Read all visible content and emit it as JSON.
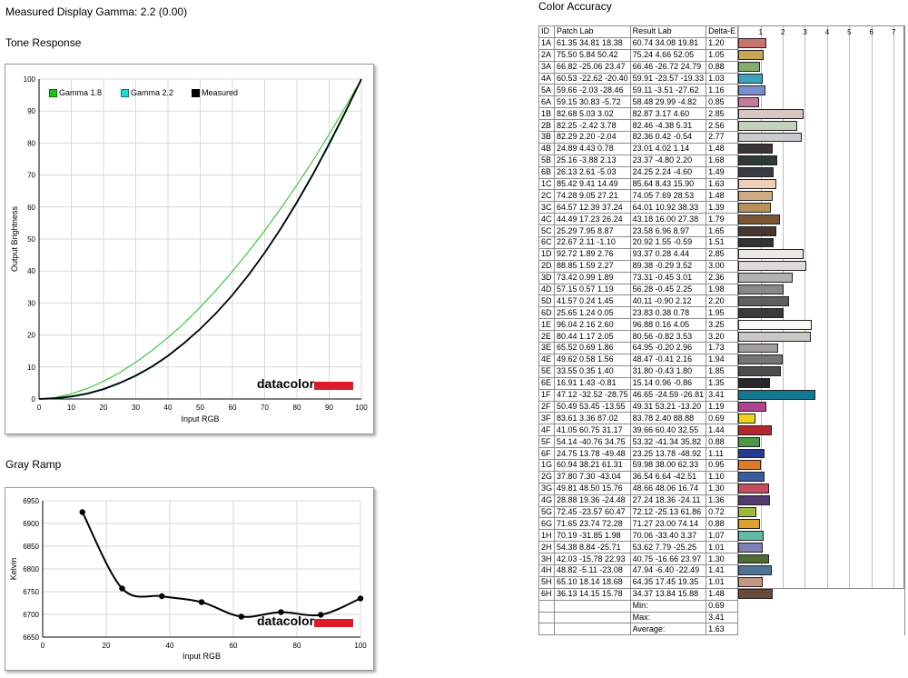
{
  "header": {
    "title": "Measured Display Gamma: 2.2 (0.00)"
  },
  "tone": {
    "title": "Tone Response",
    "legend": [
      "Gamma 1.8",
      "Gamma 2.2",
      "Measured"
    ],
    "legend_colors": [
      "#19c419",
      "#28d6d6",
      "#000000"
    ],
    "logo": "datacolor",
    "xlabel": "Input RGB",
    "ylabel": "Output Brightness",
    "xticks": [
      "0",
      "10",
      "20",
      "30",
      "40",
      "50",
      "60",
      "70",
      "80",
      "90",
      "100"
    ],
    "yticks": [
      "0",
      "10",
      "20",
      "30",
      "40",
      "50",
      "60",
      "70",
      "80",
      "90",
      "100"
    ]
  },
  "gray": {
    "title": "Gray Ramp",
    "logo": "datacolor",
    "xlabel": "Input RGB",
    "ylabel": "Kelvin",
    "xticks": [
      "0",
      "20",
      "40",
      "60",
      "80",
      "100"
    ],
    "yticks": [
      "6650",
      "6700",
      "6750",
      "6800",
      "6850",
      "6900",
      "6950"
    ]
  },
  "accuracy": {
    "title": "Color Accuracy",
    "headers": [
      "ID",
      "Patch Lab",
      "Result Lab",
      "Delta-E"
    ],
    "scale": [
      "1",
      "2",
      "3",
      "4",
      "5",
      "6",
      "7"
    ],
    "summary": [
      {
        "label": "Min:",
        "value": "0.69"
      },
      {
        "label": "Max:",
        "value": "3.41"
      },
      {
        "label": "Average:",
        "value": "1.63"
      }
    ],
    "rows": [
      {
        "id": "1A",
        "patch": "61.35 34.81 18.38",
        "result": "60.74 34.08 19.81",
        "de": "1.20",
        "de_v": 1.2,
        "color": "#c8736e"
      },
      {
        "id": "2A",
        "patch": "75.50 5.84 50.42",
        "result": "75.24 4.66 52.05",
        "de": "1.05",
        "de_v": 1.05,
        "color": "#c8a656"
      },
      {
        "id": "3A",
        "patch": "66.82 -25.06 23.47",
        "result": "66.46 -26.72 24.79",
        "de": "0.88",
        "de_v": 0.88,
        "color": "#86ac6a"
      },
      {
        "id": "4A",
        "patch": "60.53 -22.62 -20.40",
        "result": "59.91 -23.57 -19.33",
        "de": "1.03",
        "de_v": 1.03,
        "color": "#3da3b8"
      },
      {
        "id": "5A",
        "patch": "59.66 -2.03 -28.46",
        "result": "59.11 -3.51 -27.62",
        "de": "1.16",
        "de_v": 1.16,
        "color": "#7b8ed0"
      },
      {
        "id": "6A",
        "patch": "59.15 30.83 -5.72",
        "result": "58.48 29.99 -4.82",
        "de": "0.85",
        "de_v": 0.85,
        "color": "#c47b9f"
      },
      {
        "id": "1B",
        "patch": "82.68 5.03 3.02",
        "result": "82.87 3.17 4.60",
        "de": "2.85",
        "de_v": 2.85,
        "color": "#d7c6c2"
      },
      {
        "id": "2B",
        "patch": "82.25 -2.42 3.78",
        "result": "82.46 -4.38 5.31",
        "de": "2.56",
        "de_v": 2.56,
        "color": "#c2d0bc"
      },
      {
        "id": "3B",
        "patch": "82.29 2.20 -2.04",
        "result": "82.36 0.42 -0.54",
        "de": "2.77",
        "de_v": 2.77,
        "color": "#cbcbcb"
      },
      {
        "id": "4B",
        "patch": "24.89 4.43 0.78",
        "result": "23.01 4.02 1.14",
        "de": "1.48",
        "de_v": 1.48,
        "color": "#3a3434"
      },
      {
        "id": "5B",
        "patch": "25.16 -3.88 2.13",
        "result": "23.37 -4.80 2.20",
        "de": "1.68",
        "de_v": 1.68,
        "color": "#2f3a33"
      },
      {
        "id": "6B",
        "patch": "26.13 2.61 -5.03",
        "result": "24.25 2.24 -4.60",
        "de": "1.49",
        "de_v": 1.49,
        "color": "#383a44"
      },
      {
        "id": "1C",
        "patch": "85.42 9.41 14.49",
        "result": "85.64 8.43 15.90",
        "de": "1.63",
        "de_v": 1.63,
        "color": "#f0cfb9"
      },
      {
        "id": "2C",
        "patch": "74.28 9.05 27.21",
        "result": "74.05 7.69 28.53",
        "de": "1.48",
        "de_v": 1.48,
        "color": "#d0aa85"
      },
      {
        "id": "3C",
        "patch": "64.57 12.39 37.24",
        "result": "64.01 10.92 38.33",
        "de": "1.39",
        "de_v": 1.39,
        "color": "#b8905c"
      },
      {
        "id": "4C",
        "patch": "44.49 17.23 26.24",
        "result": "43.18 16.00 27.38",
        "de": "1.79",
        "de_v": 1.79,
        "color": "#7a5535"
      },
      {
        "id": "5C",
        "patch": "25.29 7.95 8.87",
        "result": "23.58 6.96 8.97",
        "de": "1.65",
        "de_v": 1.65,
        "color": "#473630"
      },
      {
        "id": "6C",
        "patch": "22.67 2.11 -1.10",
        "result": "20.92 1.55 -0.59",
        "de": "1.51",
        "de_v": 1.51,
        "color": "#333234"
      },
      {
        "id": "1D",
        "patch": "92.72 1.89 2.76",
        "result": "93.37 0.28 4.44",
        "de": "2.85",
        "de_v": 2.85,
        "color": "#ece9e3"
      },
      {
        "id": "2D",
        "patch": "88.85 1.59 2.27",
        "result": "89.38 -0.29 3.52",
        "de": "3.00",
        "de_v": 3.0,
        "color": "#dedbd6"
      },
      {
        "id": "3D",
        "patch": "73.42 0.99 1.89",
        "result": "73.31 -0.45 3.01",
        "de": "2.36",
        "de_v": 2.36,
        "color": "#b3b2ae"
      },
      {
        "id": "4D",
        "patch": "57.15 0.57 1.19",
        "result": "56.28 -0.45 2.25",
        "de": "1.98",
        "de_v": 1.98,
        "color": "#8a8987"
      },
      {
        "id": "5D",
        "patch": "41.57 0.24 1.45",
        "result": "40.11 -0.90 2.12",
        "de": "2.20",
        "de_v": 2.2,
        "color": "#5f5f5d"
      },
      {
        "id": "6D",
        "patch": "25.65 1.24 0.05",
        "result": "23.83 0.38 0.78",
        "de": "1.95",
        "de_v": 1.95,
        "color": "#3a3939"
      },
      {
        "id": "1E",
        "patch": "96.04 2.16 2.60",
        "result": "96.88 0.16 4.05",
        "de": "3.25",
        "de_v": 3.25,
        "color": "#f9f7f1"
      },
      {
        "id": "2E",
        "patch": "80.44 1.17 2.05",
        "result": "80.56 -0.82 3.53",
        "de": "3.20",
        "de_v": 3.2,
        "color": "#c9c8c3"
      },
      {
        "id": "3E",
        "patch": "65.52 0.69 1.86",
        "result": "64.95 -0.20 2.96",
        "de": "1.73",
        "de_v": 1.73,
        "color": "#a09f9c"
      },
      {
        "id": "4E",
        "patch": "49.62 0.58 1.56",
        "result": "48.47 -0.41 2.16",
        "de": "1.94",
        "de_v": 1.94,
        "color": "#767573"
      },
      {
        "id": "5E",
        "patch": "33.55 0.35 1.40",
        "result": "31.80 -0.43 1.80",
        "de": "1.85",
        "de_v": 1.85,
        "color": "#4c4c4b"
      },
      {
        "id": "6E",
        "patch": "16.91 1.43 -0.81",
        "result": "15.14 0.96 -0.86",
        "de": "1.35",
        "de_v": 1.35,
        "color": "#272628"
      },
      {
        "id": "1F",
        "patch": "47.12 -32.52 -28.75",
        "result": "46.65 -24.59 -26.81",
        "de": "3.41",
        "de_v": 3.41,
        "color": "#137892"
      },
      {
        "id": "2F",
        "patch": "50.49 53.45 -13.55",
        "result": "49.31 53.21 -13.20",
        "de": "1.19",
        "de_v": 1.19,
        "color": "#b1428f"
      },
      {
        "id": "3F",
        "patch": "83.61 3.36 87.02",
        "result": "83.78 2.40 88.88",
        "de": "0.69",
        "de_v": 0.69,
        "color": "#f0d21c"
      },
      {
        "id": "4F",
        "patch": "41.05 60.75 31.17",
        "result": "39.66 60.40 32.55",
        "de": "1.44",
        "de_v": 1.44,
        "color": "#b5262e"
      },
      {
        "id": "5F",
        "patch": "54.14 -40.76 34.75",
        "result": "53.32 -41.34 35.82",
        "de": "0.88",
        "de_v": 0.88,
        "color": "#4a9a45"
      },
      {
        "id": "6F",
        "patch": "24.75 13.78 -49.48",
        "result": "23.25 13.78 -48.92",
        "de": "1.11",
        "de_v": 1.11,
        "color": "#283b8e"
      },
      {
        "id": "1G",
        "patch": "60.94 38.21 61.31",
        "result": "59.98 38.00 62.33",
        "de": "0.95",
        "de_v": 0.95,
        "color": "#de7b29"
      },
      {
        "id": "2G",
        "patch": "37.80 7.30 -43.04",
        "result": "36.54 6.64 -42.51",
        "de": "1.10",
        "de_v": 1.1,
        "color": "#3b5aa0"
      },
      {
        "id": "3G",
        "patch": "49.81 48.50 15.76",
        "result": "48.66 48.06 16.74",
        "de": "1.30",
        "de_v": 1.3,
        "color": "#c24e5e"
      },
      {
        "id": "4G",
        "patch": "28.88 19.36 -24.48",
        "result": "27.24 18.36 -24.11",
        "de": "1.36",
        "de_v": 1.36,
        "color": "#523a6e"
      },
      {
        "id": "5G",
        "patch": "72.45 -23.57 60.47",
        "result": "72.12 -25.13 61.86",
        "de": "0.72",
        "de_v": 0.72,
        "color": "#9cbb3e"
      },
      {
        "id": "6G",
        "patch": "71.65 23.74 72.28",
        "result": "71.27 23.00 74.14",
        "de": "0.88",
        "de_v": 0.88,
        "color": "#e3a02c"
      },
      {
        "id": "1H",
        "patch": "70.19 -31.85 1.98",
        "result": "70.06 -33.40 3.37",
        "de": "1.07",
        "de_v": 1.07,
        "color": "#61bba7"
      },
      {
        "id": "2H",
        "patch": "54.38 8.84 -25.71",
        "result": "53.62 7.79 -25.25",
        "de": "1.01",
        "de_v": 1.01,
        "color": "#7c80b4"
      },
      {
        "id": "3H",
        "patch": "42.03 -15.78 22.93",
        "result": "40.75 -16.66 23.97",
        "de": "1.30",
        "de_v": 1.3,
        "color": "#4e6a36"
      },
      {
        "id": "4H",
        "patch": "48.82 -5.11 -23.08",
        "result": "47.94 -6.40 -22.49",
        "de": "1.41",
        "de_v": 1.41,
        "color": "#4c7595"
      },
      {
        "id": "5H",
        "patch": "65.10 18.14 18.68",
        "result": "64.35 17.45 19.35",
        "de": "1.01",
        "de_v": 1.01,
        "color": "#c49683"
      },
      {
        "id": "6H",
        "patch": "36.13 14.15 15.78",
        "result": "34.37 13.84 15.88",
        "de": "1.48",
        "de_v": 1.48,
        "color": "#6a4a38"
      }
    ]
  },
  "chart_data": [
    {
      "type": "line",
      "title": "Tone Response",
      "xlabel": "Input RGB",
      "ylabel": "Output Brightness",
      "xlim": [
        0,
        100
      ],
      "ylim": [
        0,
        100
      ],
      "grid": true,
      "legend_position": "top-left",
      "x": [
        0,
        5,
        10,
        15,
        20,
        25,
        30,
        35,
        40,
        45,
        50,
        55,
        60,
        65,
        70,
        75,
        80,
        85,
        90,
        95,
        100
      ],
      "series": [
        {
          "name": "Gamma 1.8",
          "color": "#19c419",
          "values": [
            0,
            0.5,
            1.6,
            3.3,
            5.5,
            8.2,
            11.5,
            15.1,
            19.2,
            23.7,
            28.7,
            34.1,
            39.9,
            46.1,
            52.6,
            59.6,
            66.9,
            74.6,
            82.7,
            91.2,
            100
          ]
        },
        {
          "name": "Gamma 2.2",
          "color": "#28d6d6",
          "values": [
            0,
            0.1,
            0.6,
            1.5,
            2.9,
            4.8,
            7.1,
            9.9,
            13.3,
            17.3,
            21.8,
            26.8,
            32.5,
            38.7,
            45.6,
            53.1,
            61.2,
            70.0,
            79.3,
            89.3,
            100
          ]
        },
        {
          "name": "Measured",
          "color": "#000000",
          "values": [
            0,
            0.2,
            0.8,
            1.7,
            3.1,
            5.0,
            7.3,
            10.1,
            13.5,
            17.5,
            21.9,
            26.9,
            32.5,
            38.8,
            45.7,
            53.3,
            61.5,
            70.3,
            79.8,
            89.7,
            100
          ]
        }
      ]
    },
    {
      "type": "line",
      "title": "Gray Ramp",
      "xlabel": "Input RGB",
      "ylabel": "Kelvin",
      "xlim": [
        0,
        100
      ],
      "ylim": [
        6650,
        6950
      ],
      "grid": true,
      "x": [
        12.5,
        25,
        37.5,
        50,
        62.5,
        75,
        87.5,
        100
      ],
      "series": [
        {
          "values": [
            6925,
            6757,
            6740,
            6727,
            6695,
            6705,
            6699,
            6735
          ]
        }
      ]
    }
  ]
}
